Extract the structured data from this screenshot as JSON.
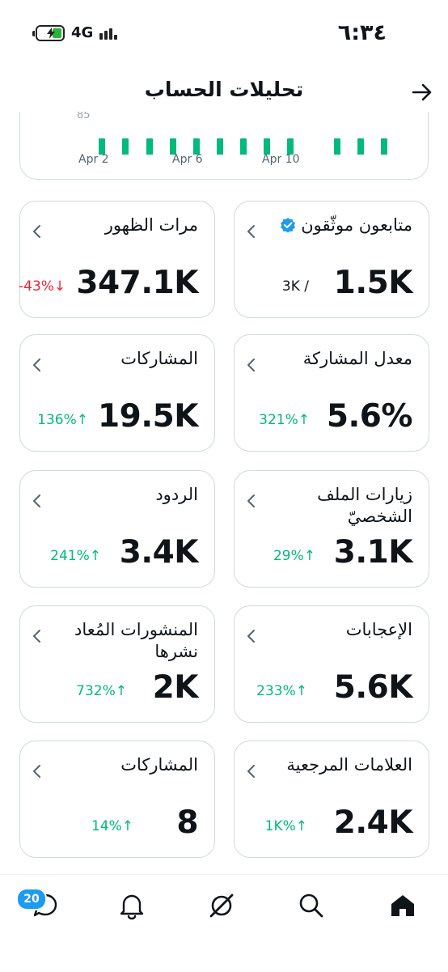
{
  "status": {
    "time": "٦:٣٤",
    "network": "4G",
    "battery_color": "#29b33a"
  },
  "header": {
    "title": "تحليلات الحساب",
    "back_icon": "arrow-right-icon"
  },
  "chart_data": {
    "type": "bar",
    "x_ticks": [
      "Apr 2",
      "Apr 6",
      "Apr 10"
    ],
    "partial_y_label": "85",
    "bar_color": "#00ba7c"
  },
  "cards": [
    {
      "id": "verified-followers",
      "title": "متابعون موثّقون",
      "value": "1.5K",
      "secondary": "3K /",
      "change_type": "plain",
      "verified": true
    },
    {
      "id": "impressions",
      "title": "مرات الظهور",
      "value": "347.1K",
      "change": "-43%↓",
      "change_type": "down"
    },
    {
      "id": "engagement-rate",
      "title": "معدل المشاركة",
      "value": "5.6%",
      "change": "321%↑",
      "change_type": "up"
    },
    {
      "id": "engagements",
      "title": "المشاركات",
      "value": "19.5K",
      "change": "136%↑",
      "change_type": "up"
    },
    {
      "id": "profile-visits",
      "title": "زيارات الملف الشخصيّ",
      "value": "3.1K",
      "change": "29%↑",
      "change_type": "up"
    },
    {
      "id": "replies",
      "title": "الردود",
      "value": "3.4K",
      "change": "241%↑",
      "change_type": "up"
    },
    {
      "id": "likes",
      "title": "الإعجابات",
      "value": "5.6K",
      "change": "233%↑",
      "change_type": "up"
    },
    {
      "id": "reposts",
      "title": "المنشورات المُعاد نشرها",
      "value": "2K",
      "change": "732%↑",
      "change_type": "up"
    },
    {
      "id": "bookmarks",
      "title": "العلامات المرجعية",
      "value": "2.4K",
      "change": "1K%↑",
      "change_type": "up"
    },
    {
      "id": "shares",
      "title": "المشاركات",
      "value": "8",
      "change": "14%↑",
      "change_type": "up"
    }
  ],
  "nav": {
    "messages_badge": "20"
  }
}
